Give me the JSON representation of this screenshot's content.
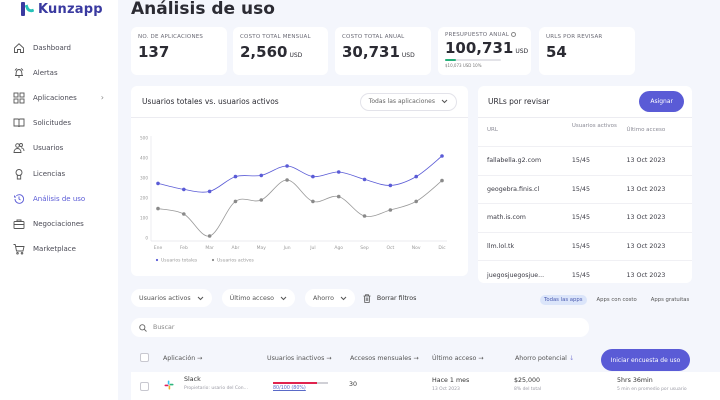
{
  "app": {
    "name": "Kunzapp"
  },
  "sidebar": {
    "items": [
      {
        "label": "Dashboard",
        "icon": "home-icon"
      },
      {
        "label": "Alertas",
        "icon": "bell-icon"
      },
      {
        "label": "Aplicaciones",
        "icon": "grid-icon",
        "has_chevron": true
      },
      {
        "label": "Solicitudes",
        "icon": "book-icon"
      },
      {
        "label": "Usuarios",
        "icon": "users-icon"
      },
      {
        "label": "Licencias",
        "icon": "award-icon"
      },
      {
        "label": "Análisis de uso",
        "icon": "history-icon",
        "active": true
      },
      {
        "label": "Negociaciones",
        "icon": "briefcase-icon"
      },
      {
        "label": "Marketplace",
        "icon": "cart-icon"
      }
    ]
  },
  "page": {
    "title": "Análisis de uso"
  },
  "stats": [
    {
      "label": "No. de aplicaciones",
      "value": "137",
      "unit": ""
    },
    {
      "label": "Costo total mensual",
      "value": "2,560",
      "unit": "USD"
    },
    {
      "label": "Costo total anual",
      "value": "30,731",
      "unit": "USD"
    },
    {
      "label": "Presupuesto anual",
      "value": "100,731",
      "unit": "USD",
      "progress_text": "$10,073 USD 10%",
      "progress_pct": 10,
      "info_icon": "info-icon"
    },
    {
      "label": "URLs por revisar",
      "value": "54",
      "unit": ""
    }
  ],
  "chart_card": {
    "title": "Usuarios totales vs. usuarios activos",
    "select_value": "Todas las aplicaciones"
  },
  "chart_data": {
    "type": "line",
    "title": "Usuarios totales vs. usuarios activos",
    "categories": [
      "Ene",
      "Feb",
      "Mar",
      "Abr",
      "May",
      "Jun",
      "Jul",
      "Ago",
      "Sep",
      "Oct",
      "Nov",
      "Dic"
    ],
    "series": [
      {
        "name": "Usuarios totales",
        "color": "#5a5bd6",
        "values": [
          273,
          243,
          233,
          307,
          313,
          360,
          307,
          330,
          293,
          263,
          307,
          410
        ]
      },
      {
        "name": "Usuarios activos",
        "color": "#8a8a8a",
        "values": [
          147,
          120,
          10,
          183,
          190,
          290,
          183,
          207,
          110,
          140,
          183,
          287
        ]
      }
    ],
    "yticks": [
      0,
      100,
      200,
      300,
      400,
      500
    ],
    "ylim": [
      0,
      500
    ],
    "xlabel": "",
    "ylabel": "",
    "grid": false,
    "legend_position": "bottom-left"
  },
  "urls_card": {
    "title": "URLs por revisar",
    "assign_label": "Asignar",
    "columns": [
      "URL",
      "Usuarios activos",
      "Último acceso"
    ],
    "rows": [
      {
        "url": "fallabella.g2.com",
        "users": "15/45",
        "last": "13 Oct 2023"
      },
      {
        "url": "geogebra.finis.cl",
        "users": "15/45",
        "last": "13 Oct 2023"
      },
      {
        "url": "math.is.com",
        "users": "15/45",
        "last": "13 Oct 2023"
      },
      {
        "url": "llm.lol.tk",
        "users": "15/45",
        "last": "13 Oct 2023"
      },
      {
        "url": "juegosjuegosjue...",
        "users": "15/45",
        "last": "13 Oct 2023"
      }
    ]
  },
  "filters": {
    "dropdowns": [
      "Usuarios activos",
      "Último acceso",
      "Ahorro"
    ],
    "clear_label": "Borrar filtros",
    "segments": [
      {
        "label": "Todas las apps",
        "active": true
      },
      {
        "label": "Apps con costo",
        "active": false
      },
      {
        "label": "Apps gratuitas",
        "active": false
      }
    ]
  },
  "search": {
    "placeholder": "Buscar"
  },
  "table": {
    "columns": [
      "Aplicación →",
      "Usuarios inactivos →",
      "Accesos mensuales →",
      "Último acceso →",
      "Ahorro potencial"
    ],
    "survey_button": "Iniciar encuesta de uso",
    "rows": [
      {
        "app": "Slack",
        "app_sub": "Propietario: usario del Con...",
        "inactive": "80/100 (80%)",
        "inactive_pct": 80,
        "monthly": "30",
        "last": "Hace 1 mes",
        "last_sub": "13 Oct 2023",
        "savings": "$25,000",
        "savings_sub": "8% del total",
        "time": "5hrs 36min",
        "time_sub": "5 min en promedio por usuario"
      }
    ]
  }
}
